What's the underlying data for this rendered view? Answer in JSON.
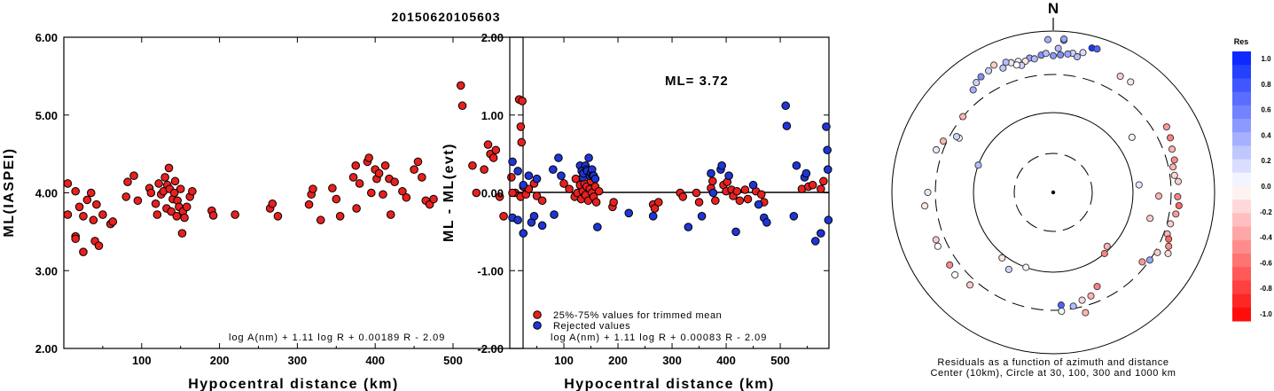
{
  "title": "20150620105603",
  "chart_data": [
    {
      "type": "scatter",
      "name": "ml-vs-distance",
      "xlabel": "Hypocentral distance (km)",
      "ylabel": "ML(IASPEI)",
      "xlim": [
        0,
        590
      ],
      "ylim": [
        2.0,
        6.0
      ],
      "xticks": [
        100,
        200,
        300,
        400,
        500
      ],
      "yticks": [
        "2.00",
        "3.00",
        "4.00",
        "5.00",
        "6.00"
      ],
      "formula": "log A(nm) + 1.11 log R + 0.00189 R - 2.09",
      "point_color": "#e8201e",
      "points": [
        [
          5,
          4.12
        ],
        [
          5,
          3.72
        ],
        [
          15,
          4.02
        ],
        [
          15,
          3.44
        ],
        [
          15,
          3.41
        ],
        [
          20,
          3.82
        ],
        [
          25,
          3.7
        ],
        [
          25,
          3.24
        ],
        [
          30,
          3.91
        ],
        [
          35,
          4.0
        ],
        [
          38,
          3.65
        ],
        [
          40,
          3.38
        ],
        [
          42,
          3.85
        ],
        [
          45,
          3.32
        ],
        [
          50,
          3.72
        ],
        [
          60,
          3.6
        ],
        [
          63,
          3.63
        ],
        [
          80,
          3.95
        ],
        [
          82,
          4.14
        ],
        [
          90,
          4.22
        ],
        [
          95,
          3.9
        ],
        [
          110,
          4.06
        ],
        [
          112,
          4.0
        ],
        [
          118,
          3.86
        ],
        [
          120,
          3.72
        ],
        [
          122,
          4.12
        ],
        [
          125,
          3.98
        ],
        [
          128,
          4.02
        ],
        [
          130,
          4.2
        ],
        [
          132,
          3.8
        ],
        [
          133,
          4.1
        ],
        [
          135,
          4.32
        ],
        [
          136,
          4.05
        ],
        [
          138,
          3.76
        ],
        [
          140,
          3.92
        ],
        [
          142,
          4.0
        ],
        [
          143,
          4.15
        ],
        [
          145,
          3.7
        ],
        [
          146,
          3.9
        ],
        [
          148,
          3.82
        ],
        [
          150,
          4.05
        ],
        [
          152,
          3.48
        ],
        [
          153,
          3.76
        ],
        [
          155,
          3.68
        ],
        [
          158,
          3.82
        ],
        [
          162,
          3.95
        ],
        [
          165,
          4.02
        ],
        [
          190,
          3.77
        ],
        [
          192,
          3.71
        ],
        [
          220,
          3.72
        ],
        [
          265,
          3.8
        ],
        [
          268,
          3.86
        ],
        [
          275,
          3.7
        ],
        [
          315,
          3.85
        ],
        [
          318,
          3.98
        ],
        [
          320,
          4.05
        ],
        [
          330,
          3.65
        ],
        [
          345,
          4.06
        ],
        [
          350,
          3.92
        ],
        [
          355,
          3.7
        ],
        [
          372,
          4.2
        ],
        [
          375,
          4.35
        ],
        [
          376,
          3.8
        ],
        [
          380,
          4.12
        ],
        [
          390,
          4.4
        ],
        [
          392,
          4.45
        ],
        [
          395,
          4.0
        ],
        [
          400,
          4.3
        ],
        [
          402,
          4.18
        ],
        [
          405,
          4.25
        ],
        [
          410,
          3.98
        ],
        [
          413,
          4.35
        ],
        [
          418,
          4.18
        ],
        [
          420,
          3.72
        ],
        [
          425,
          4.14
        ],
        [
          435,
          4.02
        ],
        [
          440,
          3.94
        ],
        [
          450,
          4.3
        ],
        [
          455,
          4.4
        ],
        [
          460,
          4.2
        ],
        [
          465,
          3.9
        ],
        [
          470,
          3.85
        ],
        [
          475,
          3.92
        ],
        [
          510,
          5.38
        ],
        [
          512,
          5.12
        ],
        [
          525,
          4.35
        ],
        [
          530,
          4.0
        ],
        [
          540,
          4.3
        ],
        [
          545,
          4.62
        ],
        [
          548,
          4.5
        ],
        [
          552,
          4.45
        ],
        [
          555,
          4.55
        ],
        [
          560,
          3.95
        ],
        [
          565,
          3.7
        ],
        [
          575,
          4.2
        ],
        [
          580,
          4.0
        ],
        [
          585,
          5.2
        ],
        [
          587,
          4.85
        ],
        [
          588,
          4.65
        ],
        [
          589,
          5.18
        ]
      ]
    },
    {
      "type": "scatter",
      "name": "residual-vs-distance",
      "xlabel": "Hypocentral distance (km)",
      "ylabel": "ML - ML(evt)",
      "xlim": [
        0,
        590
      ],
      "ylim": [
        -2.0,
        2.0
      ],
      "xticks": [
        100,
        200,
        300,
        400,
        500
      ],
      "yticks": [
        "-2.00",
        "-1.00",
        "0.00",
        "1.00",
        "2.00"
      ],
      "annotation": "ML= 3.72",
      "formula": "log A(nm) + 1.11 log R + 0.00083 R - 2.09",
      "legend": [
        {
          "label": "25%-75% values for trimmed mean",
          "color": "#e8201e"
        },
        {
          "label": "Rejected values",
          "color": "#1f35d6"
        }
      ],
      "trimmed": [
        [
          5,
          0.0
        ],
        [
          20,
          -0.05
        ],
        [
          25,
          0.08
        ],
        [
          30,
          -0.02
        ],
        [
          35,
          0.05
        ],
        [
          45,
          0.12
        ],
        [
          50,
          -0.04
        ],
        [
          60,
          -0.1
        ],
        [
          100,
          0.12
        ],
        [
          110,
          0.05
        ],
        [
          120,
          -0.05
        ],
        [
          122,
          0.18
        ],
        [
          125,
          0.0
        ],
        [
          130,
          0.1
        ],
        [
          132,
          -0.08
        ],
        [
          135,
          0.02
        ],
        [
          138,
          0.12
        ],
        [
          140,
          -0.03
        ],
        [
          142,
          0.08
        ],
        [
          145,
          -0.1
        ],
        [
          148,
          0.05
        ],
        [
          150,
          0.15
        ],
        [
          152,
          0.0
        ],
        [
          155,
          -0.05
        ],
        [
          158,
          0.08
        ],
        [
          160,
          -0.12
        ],
        [
          165,
          0.02
        ],
        [
          190,
          -0.18
        ],
        [
          192,
          -0.12
        ],
        [
          265,
          -0.15
        ],
        [
          268,
          -0.2
        ],
        [
          275,
          -0.12
        ],
        [
          315,
          0.0
        ],
        [
          320,
          -0.05
        ],
        [
          345,
          0.0
        ],
        [
          350,
          -0.12
        ],
        [
          372,
          0.06
        ],
        [
          375,
          0.15
        ],
        [
          380,
          -0.1
        ],
        [
          395,
          0.1
        ],
        [
          400,
          0.02
        ],
        [
          402,
          0.14
        ],
        [
          410,
          0.04
        ],
        [
          413,
          -0.04
        ],
        [
          420,
          0.02
        ],
        [
          425,
          -0.1
        ],
        [
          435,
          0.04
        ],
        [
          440,
          -0.08
        ],
        [
          455,
          0.02
        ],
        [
          465,
          -0.02
        ],
        [
          470,
          -0.12
        ],
        [
          540,
          0.05
        ],
        [
          552,
          0.08
        ],
        [
          560,
          0.1
        ],
        [
          575,
          0.05
        ],
        [
          580,
          0.15
        ]
      ],
      "rejected": [
        [
          5,
          0.4
        ],
        [
          5,
          -0.32
        ],
        [
          15,
          0.28
        ],
        [
          15,
          -0.35
        ],
        [
          25,
          -0.52
        ],
        [
          25,
          0.1
        ],
        [
          35,
          0.22
        ],
        [
          40,
          -0.38
        ],
        [
          45,
          -0.3
        ],
        [
          50,
          0.18
        ],
        [
          60,
          -0.42
        ],
        [
          80,
          0.3
        ],
        [
          82,
          -0.28
        ],
        [
          90,
          0.45
        ],
        [
          95,
          0.22
        ],
        [
          130,
          0.35
        ],
        [
          133,
          0.28
        ],
        [
          135,
          0.2
        ],
        [
          136,
          0.25
        ],
        [
          140,
          0.35
        ],
        [
          142,
          0.3
        ],
        [
          143,
          0.28
        ],
        [
          146,
          0.45
        ],
        [
          148,
          0.22
        ],
        [
          150,
          0.25
        ],
        [
          152,
          0.3
        ],
        [
          153,
          0.22
        ],
        [
          155,
          0.22
        ],
        [
          158,
          0.18
        ],
        [
          162,
          -0.44
        ],
        [
          220,
          -0.26
        ],
        [
          265,
          -0.3
        ],
        [
          330,
          -0.44
        ],
        [
          355,
          -0.3
        ],
        [
          372,
          0.25
        ],
        [
          376,
          0.0
        ],
        [
          390,
          0.3
        ],
        [
          392,
          0.35
        ],
        [
          405,
          0.22
        ],
        [
          418,
          -0.5
        ],
        [
          450,
          0.1
        ],
        [
          460,
          -0.15
        ],
        [
          470,
          -0.32
        ],
        [
          475,
          -0.38
        ],
        [
          510,
          1.12
        ],
        [
          512,
          0.86
        ],
        [
          525,
          -0.3
        ],
        [
          530,
          0.35
        ],
        [
          545,
          0.2
        ],
        [
          548,
          0.25
        ],
        [
          565,
          -0.62
        ],
        [
          575,
          -0.52
        ],
        [
          585,
          0.85
        ],
        [
          587,
          0.55
        ],
        [
          588,
          0.3
        ],
        [
          589,
          -0.35
        ]
      ]
    },
    {
      "type": "scatter",
      "name": "azimuth-residual-map",
      "north_label": "N",
      "caption_line1": "Residuals as a function of azimuth and distance",
      "caption_line2": "Center (10km), Circle at 30, 100, 300 and 1000 km",
      "colorbar_title": "Res",
      "colorbar_ticks": [
        "1.0",
        "0.8",
        "0.6",
        "0.4",
        "0.2",
        "0.0",
        "-0.2",
        "-0.4",
        "-0.6",
        "-0.8",
        "-1.0"
      ],
      "stations": [
        [
          4,
          780,
          0.5
        ],
        [
          4,
          810,
          0.4
        ],
        [
          -2,
          790,
          0.35
        ],
        [
          2,
          620,
          0.3
        ],
        [
          8,
          560,
          0.2
        ],
        [
          12,
          600,
          0.15
        ],
        [
          15,
          720,
          0.9
        ],
        [
          17,
          730,
          0.7
        ],
        [
          -15,
          490,
          0.05
        ],
        [
          -18,
          500,
          0.1
        ],
        [
          -20,
          530,
          0.3
        ],
        [
          -25,
          560,
          -0.2
        ],
        [
          -28,
          520,
          0.2
        ],
        [
          -22,
          470,
          0.25
        ],
        [
          -10,
          500,
          0.4
        ],
        [
          -8,
          480,
          0.3
        ],
        [
          -5,
          520,
          0.5
        ],
        [
          -3,
          540,
          0.3
        ],
        [
          0,
          505,
          0.45
        ],
        [
          3,
          520,
          0.5
        ],
        [
          6,
          540,
          0.4
        ],
        [
          10,
          520,
          0.3
        ],
        [
          -32,
          500,
          0.5
        ],
        [
          -35,
          470,
          0.2
        ],
        [
          -38,
          420,
          0.35
        ],
        [
          -12,
          470,
          -0.1
        ],
        [
          -14,
          430,
          0.2
        ],
        [
          -16,
          450,
          0.0
        ],
        [
          30,
          470,
          -0.2
        ],
        [
          35,
          480,
          -0.1
        ],
        [
          60,
          430,
          -0.4
        ],
        [
          65,
          410,
          -0.5
        ],
        [
          70,
          380,
          -0.3
        ],
        [
          75,
          370,
          -0.45
        ],
        [
          78,
          340,
          -0.3
        ],
        [
          82,
          340,
          -0.15
        ],
        [
          85,
          370,
          -0.2
        ],
        [
          92,
          360,
          -0.5
        ],
        [
          96,
          380,
          -0.6
        ],
        [
          100,
          360,
          -0.4
        ],
        [
          105,
          330,
          -0.2
        ],
        [
          110,
          330,
          -0.3
        ],
        [
          112,
          360,
          -0.6
        ],
        [
          115,
          390,
          -0.45
        ],
        [
          118,
          420,
          -0.15
        ],
        [
          120,
          320,
          -0.2
        ],
        [
          125,
          300,
          0.4
        ],
        [
          92,
          210,
          -0.3
        ],
        [
          128,
          260,
          -0.4
        ],
        [
          155,
          200,
          -0.5
        ],
        [
          160,
          240,
          -0.3
        ],
        [
          165,
          250,
          -0.15
        ],
        [
          170,
          280,
          0.3
        ],
        [
          176,
          260,
          0.7
        ],
        [
          176,
          310,
          0.05
        ],
        [
          165,
          360,
          -0.3
        ],
        [
          210,
          130,
          0.2
        ],
        [
          218,
          110,
          -0.1
        ],
        [
          200,
          100,
          0.05
        ],
        [
          230,
          400,
          0.0
        ],
        [
          235,
          380,
          -0.45
        ],
        [
          222,
          360,
          -0.2
        ],
        [
          245,
          390,
          0.0
        ],
        [
          248,
          380,
          -0.2
        ],
        [
          264,
          410,
          -0.1
        ],
        [
          270,
          370,
          0.1
        ],
        [
          105,
          180,
          -0.2
        ],
        [
          135,
          90,
          -0.3
        ],
        [
          140,
          100,
          -0.5
        ],
        [
          290,
          100,
          0.3
        ],
        [
          300,
          230,
          0.0
        ],
        [
          85,
          120,
          0.1
        ],
        [
          55,
          160,
          0.05
        ],
        [
          -60,
          250,
          0.2
        ],
        [
          -50,
          300,
          -0.3
        ],
        [
          -65,
          330,
          -0.3
        ],
        [
          -70,
          360,
          0.1
        ]
      ]
    }
  ]
}
